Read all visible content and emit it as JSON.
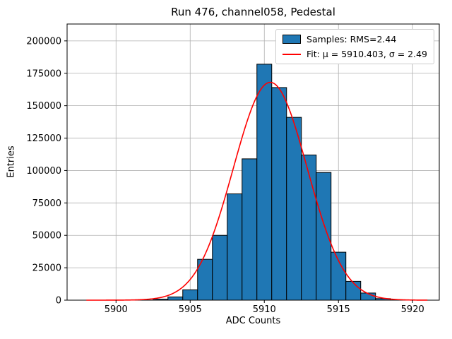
{
  "chart_data": {
    "type": "histogram",
    "title": "Run 476, channel058, Pedestal",
    "xlabel": "ADC Counts",
    "ylabel": "Entries",
    "xlim": [
      5896.7,
      5921.8
    ],
    "ylim": [
      0,
      213000
    ],
    "xticks": [
      5900,
      5905,
      5910,
      5915,
      5920
    ],
    "yticks": [
      0,
      25000,
      50000,
      75000,
      100000,
      125000,
      150000,
      175000,
      200000
    ],
    "grid": true,
    "bin_width": 1,
    "bin_centers": [
      5903,
      5904,
      5905,
      5906,
      5907,
      5908,
      5909,
      5910,
      5911,
      5912,
      5913,
      5914,
      5915,
      5916,
      5917,
      5918
    ],
    "counts": [
      800,
      2500,
      8000,
      31500,
      50000,
      82000,
      109000,
      182000,
      164000,
      141000,
      112000,
      98500,
      37000,
      14500,
      5500,
      1200
    ],
    "colors": {
      "bar_fill": "#1f77b4",
      "bar_edge": "#000000",
      "fit_line": "#ff0000",
      "grid": "#b0b0b0",
      "frame": "#000000"
    },
    "fit": {
      "mu": 5910.403,
      "sigma": 2.49,
      "amplitude": 168000,
      "x_start": 5898,
      "x_end": 5921
    },
    "legend": {
      "position": "upper-right",
      "entries": [
        {
          "swatch": "patch",
          "label": "Samples: RMS=2.44"
        },
        {
          "swatch": "line",
          "label": "Fit: μ = 5910.403, σ = 2.49"
        }
      ]
    }
  }
}
